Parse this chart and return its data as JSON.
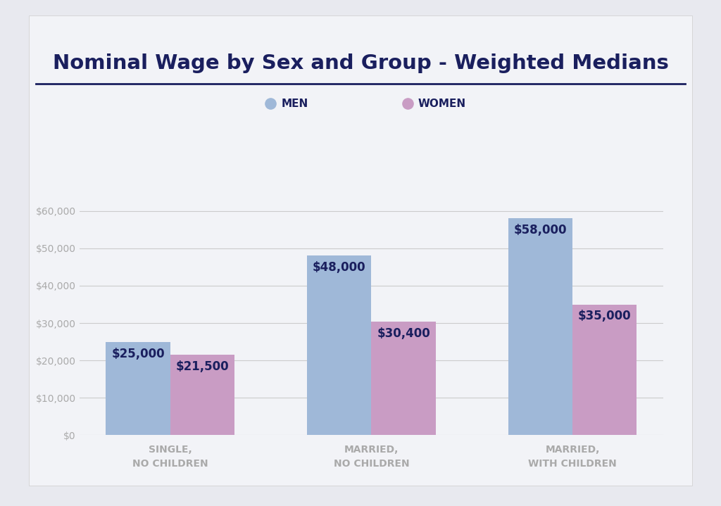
{
  "title": "Nominal Wage by Sex and Group - Weighted Medians",
  "categories": [
    "SINGLE,\nNO CHILDREN",
    "MARRIED,\nNO CHILDREN",
    "MARRIED,\nWITH CHILDREN"
  ],
  "men_values": [
    25000,
    48000,
    58000
  ],
  "women_values": [
    21500,
    30400,
    35000
  ],
  "men_labels": [
    "$25,000",
    "$48,000",
    "$58,000"
  ],
  "women_labels": [
    "$21,500",
    "$30,400",
    "$35,000"
  ],
  "men_color": "#9FB8D8",
  "women_color": "#C99CC4",
  "outer_bg_color": "#E8E9EF",
  "card_bg_color": "#F2F3F7",
  "title_color": "#1A1F5E",
  "label_color": "#1A1F5E",
  "axis_color": "#AAAAAA",
  "grid_color": "#CCCCCC",
  "divider_color": "#1A1F5E",
  "legend_men_label": "MEN",
  "legend_women_label": "WOMEN",
  "ylim": [
    0,
    65000
  ],
  "yticks": [
    0,
    10000,
    20000,
    30000,
    40000,
    50000,
    60000
  ],
  "bar_width": 0.32,
  "title_fontsize": 21,
  "tick_fontsize": 10,
  "legend_fontsize": 11,
  "bar_label_fontsize": 12
}
